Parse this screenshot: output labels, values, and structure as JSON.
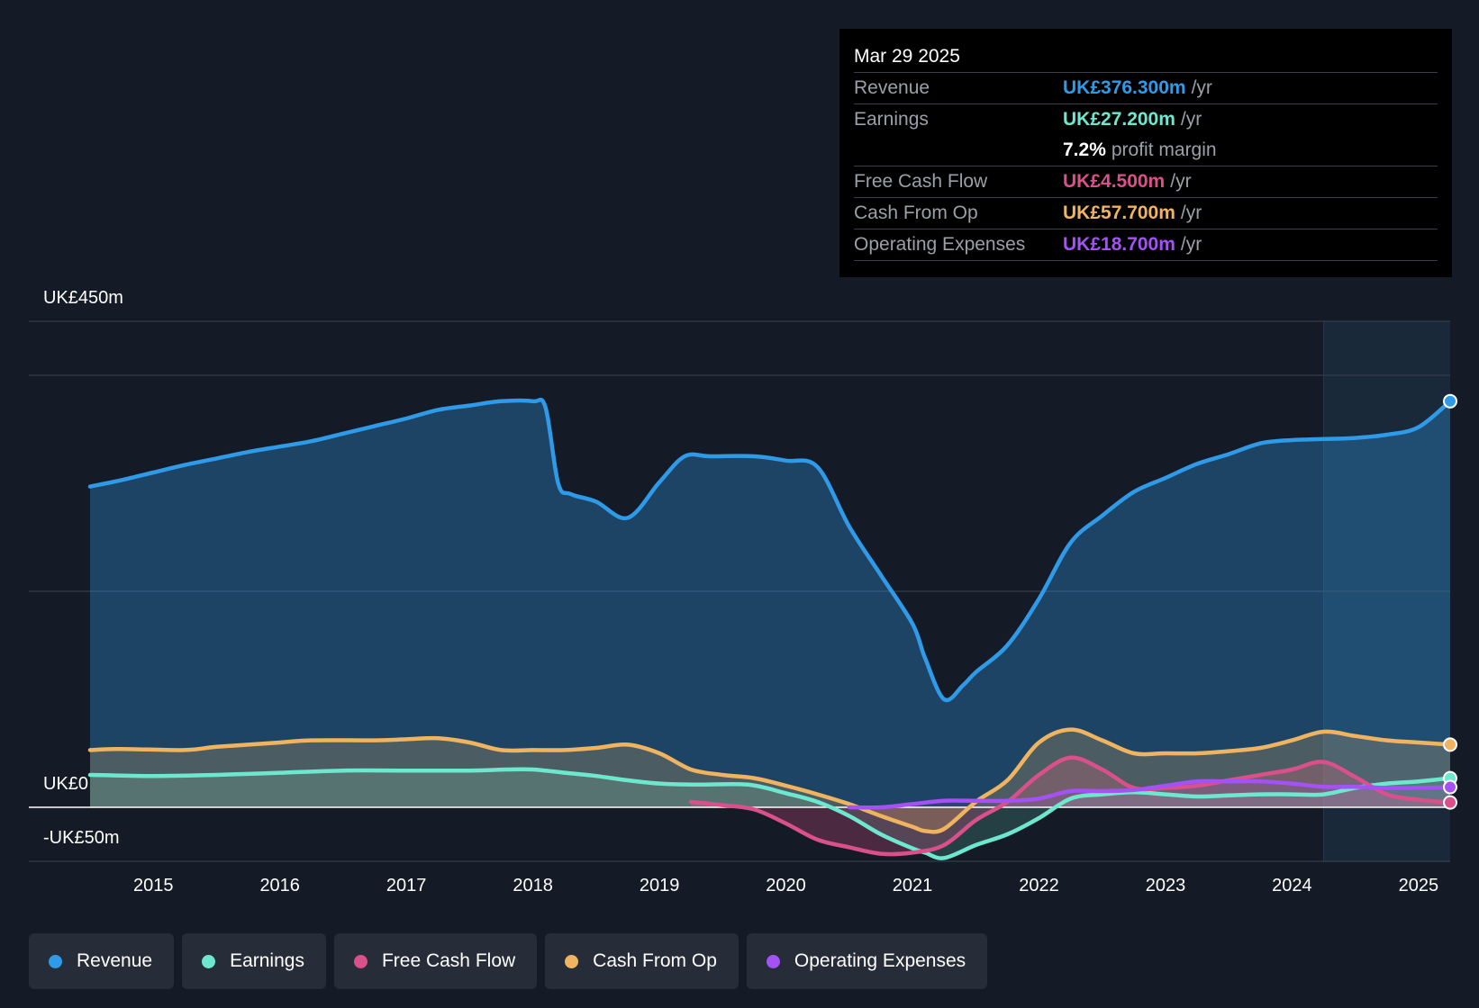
{
  "tooltip": {
    "date": "Mar 29 2025",
    "rows": [
      {
        "name": "Revenue",
        "value": "UK£376.300m",
        "unit": "/yr",
        "color": "#2f9ae8"
      },
      {
        "name": "Earnings",
        "value": "UK£27.200m",
        "unit": "/yr",
        "color": "#6ee7cf"
      },
      {
        "name": "",
        "value": "7.2%",
        "unit": "profit margin",
        "color": "#ffffff"
      },
      {
        "name": "Free Cash Flow",
        "value": "UK£4.500m",
        "unit": "/yr",
        "color": "#d9508a"
      },
      {
        "name": "Cash From Op",
        "value": "UK£57.700m",
        "unit": "/yr",
        "color": "#f0b460"
      },
      {
        "name": "Operating Expenses",
        "value": "UK£18.700m",
        "unit": "/yr",
        "color": "#a451f5"
      }
    ]
  },
  "legend": [
    {
      "label": "Revenue",
      "color": "#2f9ae8"
    },
    {
      "label": "Earnings",
      "color": "#6ee7cf"
    },
    {
      "label": "Free Cash Flow",
      "color": "#d9508a"
    },
    {
      "label": "Cash From Op",
      "color": "#f0b460"
    },
    {
      "label": "Operating Expenses",
      "color": "#a451f5"
    }
  ],
  "chart_data": {
    "type": "area",
    "y_tick_labels": [
      "UK£450m",
      "UK£0",
      "-UK£50m"
    ],
    "ylim": [
      -50,
      450
    ],
    "xlim": [
      2014.0,
      2025.3
    ],
    "x_ticks": [
      2015,
      2016,
      2017,
      2018,
      2019,
      2020,
      2021,
      2022,
      2023,
      2024,
      2025
    ],
    "x_tick_labels": [
      "2015",
      "2016",
      "2017",
      "2018",
      "2019",
      "2020",
      "2021",
      "2022",
      "2023",
      "2024",
      "2025"
    ],
    "grid": true,
    "forecast_shade_start": 2024.25,
    "series": [
      {
        "name": "Revenue",
        "color": "#2f9ae8",
        "points": [
          [
            2014.5,
            297
          ],
          [
            2014.75,
            303
          ],
          [
            2015.0,
            310
          ],
          [
            2015.25,
            317
          ],
          [
            2015.5,
            323
          ],
          [
            2015.75,
            329
          ],
          [
            2016.0,
            334
          ],
          [
            2016.25,
            339
          ],
          [
            2016.5,
            346
          ],
          [
            2016.75,
            353
          ],
          [
            2017.0,
            360
          ],
          [
            2017.25,
            368
          ],
          [
            2017.5,
            372
          ],
          [
            2017.75,
            376
          ],
          [
            2018.0,
            376
          ],
          [
            2018.1,
            370
          ],
          [
            2018.2,
            300
          ],
          [
            2018.3,
            290
          ],
          [
            2018.5,
            283
          ],
          [
            2018.75,
            268
          ],
          [
            2019.0,
            301
          ],
          [
            2019.2,
            325
          ],
          [
            2019.4,
            325
          ],
          [
            2019.75,
            325
          ],
          [
            2020.0,
            321
          ],
          [
            2020.25,
            315
          ],
          [
            2020.5,
            260
          ],
          [
            2020.75,
            215
          ],
          [
            2021.0,
            170
          ],
          [
            2021.1,
            138
          ],
          [
            2021.25,
            100
          ],
          [
            2021.4,
            113
          ],
          [
            2021.5,
            125
          ],
          [
            2021.75,
            150
          ],
          [
            2022.0,
            193
          ],
          [
            2022.25,
            245
          ],
          [
            2022.5,
            270
          ],
          [
            2022.75,
            292
          ],
          [
            2023.0,
            305
          ],
          [
            2023.25,
            318
          ],
          [
            2023.5,
            327
          ],
          [
            2023.75,
            337
          ],
          [
            2024.0,
            340
          ],
          [
            2024.25,
            341
          ],
          [
            2024.5,
            342
          ],
          [
            2024.75,
            345
          ],
          [
            2025.0,
            352
          ],
          [
            2025.25,
            376
          ]
        ]
      },
      {
        "name": "Earnings",
        "color": "#6ee7cf",
        "points": [
          [
            2014.5,
            30
          ],
          [
            2015.0,
            29
          ],
          [
            2015.5,
            30
          ],
          [
            2016.0,
            32
          ],
          [
            2016.5,
            34
          ],
          [
            2017.0,
            34
          ],
          [
            2017.5,
            34
          ],
          [
            2017.8,
            35
          ],
          [
            2018.0,
            35
          ],
          [
            2018.25,
            32
          ],
          [
            2018.5,
            29
          ],
          [
            2018.75,
            25
          ],
          [
            2019.0,
            22
          ],
          [
            2019.3,
            21
          ],
          [
            2019.7,
            21
          ],
          [
            2020.0,
            13
          ],
          [
            2020.25,
            5
          ],
          [
            2020.5,
            -8
          ],
          [
            2020.75,
            -25
          ],
          [
            2021.0,
            -38
          ],
          [
            2021.1,
            -42
          ],
          [
            2021.25,
            -47
          ],
          [
            2021.5,
            -35
          ],
          [
            2021.75,
            -25
          ],
          [
            2022.0,
            -10
          ],
          [
            2022.25,
            8
          ],
          [
            2022.5,
            12
          ],
          [
            2022.75,
            14
          ],
          [
            2023.0,
            12
          ],
          [
            2023.25,
            10
          ],
          [
            2023.5,
            11
          ],
          [
            2023.75,
            12
          ],
          [
            2024.0,
            12
          ],
          [
            2024.25,
            12
          ],
          [
            2024.5,
            18
          ],
          [
            2024.75,
            22
          ],
          [
            2025.0,
            24
          ],
          [
            2025.25,
            27
          ]
        ]
      },
      {
        "name": "Free Cash Flow",
        "color": "#d9508a",
        "points": [
          [
            2019.25,
            5
          ],
          [
            2019.5,
            2
          ],
          [
            2019.75,
            -2
          ],
          [
            2020.0,
            -15
          ],
          [
            2020.25,
            -30
          ],
          [
            2020.5,
            -37
          ],
          [
            2020.75,
            -43
          ],
          [
            2021.0,
            -42
          ],
          [
            2021.25,
            -35
          ],
          [
            2021.5,
            -12
          ],
          [
            2021.75,
            5
          ],
          [
            2022.0,
            30
          ],
          [
            2022.25,
            46
          ],
          [
            2022.5,
            35
          ],
          [
            2022.75,
            18
          ],
          [
            2023.0,
            18
          ],
          [
            2023.25,
            20
          ],
          [
            2023.5,
            25
          ],
          [
            2023.75,
            30
          ],
          [
            2024.0,
            35
          ],
          [
            2024.25,
            42
          ],
          [
            2024.5,
            28
          ],
          [
            2024.75,
            12
          ],
          [
            2025.0,
            7
          ],
          [
            2025.25,
            4.5
          ]
        ]
      },
      {
        "name": "Cash From Op",
        "color": "#f0b460",
        "points": [
          [
            2014.5,
            53
          ],
          [
            2014.75,
            54
          ],
          [
            2015.25,
            53
          ],
          [
            2015.5,
            56
          ],
          [
            2016.0,
            60
          ],
          [
            2016.25,
            62
          ],
          [
            2016.75,
            62
          ],
          [
            2017.0,
            63
          ],
          [
            2017.25,
            64
          ],
          [
            2017.5,
            60
          ],
          [
            2017.75,
            53
          ],
          [
            2018.0,
            53
          ],
          [
            2018.25,
            53
          ],
          [
            2018.5,
            55
          ],
          [
            2018.75,
            58
          ],
          [
            2019.0,
            50
          ],
          [
            2019.25,
            35
          ],
          [
            2019.5,
            30
          ],
          [
            2019.75,
            27
          ],
          [
            2020.0,
            20
          ],
          [
            2020.25,
            12
          ],
          [
            2020.5,
            3
          ],
          [
            2020.75,
            -8
          ],
          [
            2021.0,
            -18
          ],
          [
            2021.1,
            -22
          ],
          [
            2021.25,
            -20
          ],
          [
            2021.5,
            5
          ],
          [
            2021.75,
            25
          ],
          [
            2022.0,
            60
          ],
          [
            2022.25,
            72
          ],
          [
            2022.5,
            62
          ],
          [
            2022.75,
            50
          ],
          [
            2023.0,
            50
          ],
          [
            2023.25,
            50
          ],
          [
            2023.5,
            52
          ],
          [
            2023.75,
            55
          ],
          [
            2024.0,
            62
          ],
          [
            2024.25,
            70
          ],
          [
            2024.5,
            66
          ],
          [
            2024.75,
            62
          ],
          [
            2025.0,
            60
          ],
          [
            2025.25,
            58
          ]
        ]
      },
      {
        "name": "Operating Expenses",
        "color": "#a451f5",
        "points": [
          [
            2020.5,
            0
          ],
          [
            2020.75,
            0
          ],
          [
            2021.0,
            3
          ],
          [
            2021.25,
            6
          ],
          [
            2021.5,
            6
          ],
          [
            2021.75,
            6
          ],
          [
            2022.0,
            8
          ],
          [
            2022.25,
            15
          ],
          [
            2022.5,
            15
          ],
          [
            2022.75,
            16
          ],
          [
            2023.0,
            20
          ],
          [
            2023.25,
            24
          ],
          [
            2023.5,
            24
          ],
          [
            2023.75,
            24
          ],
          [
            2024.0,
            22
          ],
          [
            2024.25,
            19
          ],
          [
            2024.5,
            19
          ],
          [
            2024.75,
            18
          ],
          [
            2025.0,
            18
          ],
          [
            2025.25,
            18.7
          ]
        ]
      }
    ]
  }
}
